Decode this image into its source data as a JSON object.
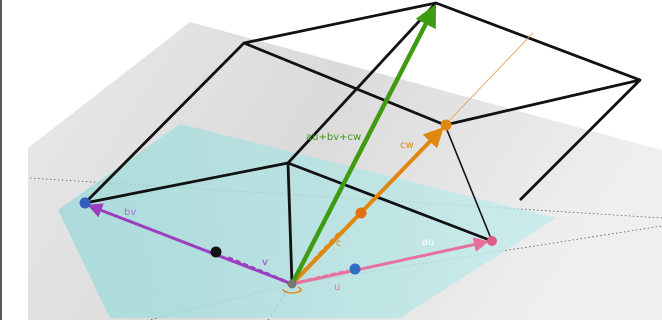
{
  "labels": {
    "sum_vector": "au+bv+cw",
    "cw": "cw",
    "bv": "bv",
    "au": "au",
    "v": "v",
    "u": "u",
    "c": "c"
  },
  "colors": {
    "green": "#3e9b12",
    "orange": "#e0870f",
    "purple": "#9a3fc0",
    "pink": "#e8709c",
    "blue": "#2f5fb8",
    "black": "#111111",
    "plane_teal": "#a9dede",
    "plane_gray": "#d8d8d8"
  },
  "icons": {
    "rotate_tool": "rotate-3d-view-icon"
  }
}
